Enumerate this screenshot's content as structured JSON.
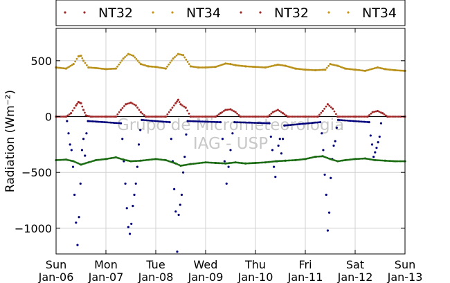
{
  "chart_data": {
    "type": "scatter",
    "ylabel": "Radiation (Wm⁻²)",
    "ylim": [
      -1230,
      790
    ],
    "yticks": [
      500,
      0,
      -500,
      -1000
    ],
    "ytick_labels": [
      "500",
      "0",
      "−500",
      "−1000"
    ],
    "xlim": [
      0,
      7
    ],
    "xticks": [
      {
        "day": 0,
        "line1": "Sun",
        "line2": "Jan-06"
      },
      {
        "day": 1,
        "line1": "Mon",
        "line2": "Jan-07"
      },
      {
        "day": 2,
        "line1": "Tue",
        "line2": "Jan-08"
      },
      {
        "day": 3,
        "line1": "Wed",
        "line2": "Jan-09"
      },
      {
        "day": 4,
        "line1": "Thu",
        "line2": "Jan-10"
      },
      {
        "day": 5,
        "line1": "Fri",
        "line2": "Jan-11"
      },
      {
        "day": 6,
        "line1": "Sat",
        "line2": "Jan-12"
      },
      {
        "day": 7,
        "line1": "Sun",
        "line2": "Jan-13"
      }
    ],
    "grid": true,
    "legend_position": "top",
    "legend": [
      {
        "label": "NT32",
        "color": "#a02828"
      },
      {
        "label": "NT34",
        "color": "#c89614"
      },
      {
        "label": "NT32",
        "color": "#a02828"
      },
      {
        "label": "NT34",
        "color": "#c89614"
      }
    ],
    "watermark": [
      "Grupo de Micrometeorologia",
      "IAG - USP"
    ],
    "series": [
      {
        "color": "#b8901a",
        "x": [
          0,
          0.2,
          0.35,
          0.45,
          0.5,
          0.55,
          0.65,
          0.8,
          1,
          1.2,
          1.35,
          1.45,
          1.55,
          1.7,
          1.85,
          2,
          2.2,
          2.35,
          2.45,
          2.55,
          2.7,
          2.85,
          3,
          3.2,
          3.4,
          3.5,
          3.6,
          3.8,
          4,
          4.2,
          4.45,
          4.6,
          4.8,
          5,
          5.2,
          5.4,
          5.5,
          5.65,
          5.8,
          6,
          6.2,
          6.45,
          6.6,
          6.8,
          7
        ],
        "y": [
          440,
          430,
          470,
          540,
          545,
          500,
          440,
          435,
          425,
          430,
          520,
          560,
          545,
          470,
          450,
          445,
          430,
          520,
          560,
          550,
          450,
          440,
          440,
          445,
          475,
          470,
          460,
          450,
          445,
          440,
          465,
          455,
          430,
          420,
          415,
          420,
          470,
          455,
          430,
          420,
          410,
          440,
          425,
          415,
          410
        ]
      },
      {
        "color": "#a02828",
        "x": [
          0,
          0.2,
          0.3,
          0.4,
          0.45,
          0.5,
          0.55,
          0.6,
          0.7,
          1,
          1.2,
          1.3,
          1.4,
          1.5,
          1.6,
          1.7,
          1.8,
          2,
          2.2,
          2.3,
          2.4,
          2.45,
          2.5,
          2.6,
          2.7,
          3,
          3.2,
          3.3,
          3.4,
          3.5,
          3.6,
          3.7,
          4,
          4.25,
          4.35,
          4.45,
          4.55,
          4.65,
          5,
          5.25,
          5.35,
          5.45,
          5.55,
          5.65,
          6,
          6.25,
          6.35,
          6.45,
          6.55,
          6.65,
          7
        ],
        "y": [
          0,
          0,
          30,
          100,
          130,
          120,
          60,
          10,
          0,
          0,
          0,
          60,
          110,
          125,
          100,
          40,
          0,
          0,
          0,
          60,
          120,
          150,
          110,
          80,
          0,
          0,
          0,
          30,
          60,
          65,
          40,
          0,
          0,
          0,
          40,
          60,
          30,
          0,
          0,
          0,
          50,
          110,
          70,
          0,
          0,
          0,
          40,
          50,
          30,
          0,
          0
        ]
      },
      {
        "color": "#00007a",
        "x": [
          0.22,
          0.25,
          0.28,
          0.31,
          0.34,
          0.37,
          0.4,
          0.43,
          0.46,
          0.49,
          0.52,
          0.55,
          0.58,
          0.61,
          0.64,
          1.3,
          1.33,
          1.36,
          1.39,
          1.42,
          1.45,
          1.48,
          1.51,
          1.54,
          1.57,
          1.6,
          1.63,
          1.66,
          1.69,
          1.72,
          2.28,
          2.31,
          2.34,
          2.37,
          2.4,
          2.43,
          2.46,
          2.49,
          2.52,
          2.55,
          2.58,
          2.61,
          2.64,
          3.3,
          3.34,
          3.38,
          3.42,
          3.46,
          3.5,
          3.54,
          3.58,
          4.28,
          4.31,
          4.34,
          4.37,
          4.4,
          4.43,
          4.46,
          4.49,
          4.52,
          4.55,
          4.58,
          5.3,
          5.33,
          5.36,
          5.39,
          5.42,
          5.45,
          5.48,
          5.51,
          5.54,
          5.57,
          5.6,
          5.63,
          5.66,
          6.28,
          6.31,
          6.34,
          6.37,
          6.4,
          6.43,
          6.46,
          6.49,
          6.52
        ],
        "y": [
          -40,
          -150,
          -250,
          -300,
          -450,
          -700,
          -950,
          -1150,
          -900,
          -600,
          -300,
          -200,
          -350,
          -150,
          -40,
          -60,
          -200,
          -400,
          -600,
          -820,
          -990,
          -1050,
          -960,
          -800,
          -700,
          -600,
          -450,
          -250,
          -120,
          -30,
          -50,
          -200,
          -400,
          -650,
          -850,
          -1210,
          -880,
          -790,
          -700,
          -500,
          -360,
          -160,
          -40,
          -50,
          -200,
          -400,
          -600,
          -450,
          -300,
          -150,
          -50,
          -60,
          -180,
          -300,
          -450,
          -540,
          -400,
          -260,
          -200,
          -330,
          -200,
          -80,
          -50,
          -150,
          -300,
          -520,
          -700,
          -1020,
          -860,
          -550,
          -380,
          -260,
          -220,
          -100,
          -30,
          -50,
          -170,
          -250,
          -360,
          -320,
          -280,
          -230,
          -180,
          -60
        ]
      },
      {
        "color": "#1a6b12",
        "x": [
          0,
          0.2,
          0.35,
          0.5,
          0.65,
          0.8,
          1,
          1.2,
          1.35,
          1.5,
          1.7,
          2,
          2.2,
          2.4,
          2.5,
          2.7,
          3,
          3.2,
          3.4,
          3.6,
          3.8,
          4,
          4.2,
          4.4,
          4.6,
          4.8,
          5,
          5.2,
          5.35,
          5.5,
          5.65,
          5.8,
          6,
          6.2,
          6.4,
          6.6,
          6.8,
          7
        ],
        "y": [
          -390,
          -385,
          -400,
          -430,
          -410,
          -390,
          -380,
          -365,
          -385,
          -400,
          -395,
          -380,
          -390,
          -420,
          -440,
          -425,
          -410,
          -415,
          -420,
          -410,
          -420,
          -415,
          -410,
          -400,
          -395,
          -390,
          -380,
          -360,
          -355,
          -380,
          -400,
          -390,
          -380,
          -375,
          -390,
          -395,
          -400,
          -400
        ]
      }
    ]
  }
}
